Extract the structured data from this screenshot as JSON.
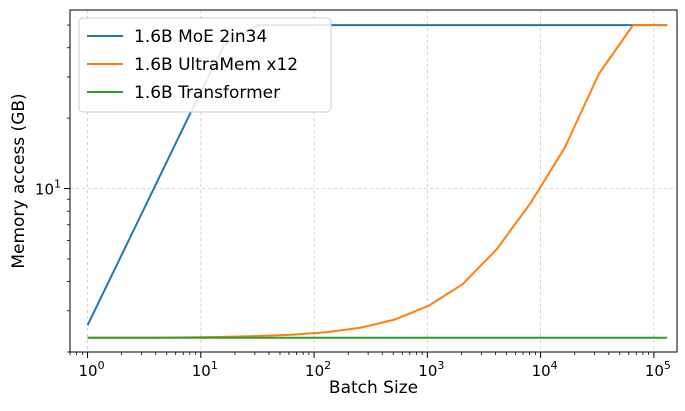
{
  "chart_data": {
    "type": "line",
    "xscale": "log",
    "yscale": "log",
    "xlabel": "Batch Size",
    "ylabel": "Memory access (GB)",
    "xlim": [
      0.7,
      160000
    ],
    "ylim": [
      2.0,
      58
    ],
    "grid": true,
    "legend_position": "top-left",
    "x_ticks": [
      {
        "value": 1,
        "label": "10^0"
      },
      {
        "value": 10,
        "label": "10^1"
      },
      {
        "value": 100,
        "label": "10^2"
      },
      {
        "value": 1000,
        "label": "10^3"
      },
      {
        "value": 10000,
        "label": "10^4"
      },
      {
        "value": 100000,
        "label": "10^5"
      }
    ],
    "y_ticks": [
      {
        "value": 10,
        "label": "10^1"
      }
    ],
    "series": [
      {
        "name": "1.6B MoE 2in34",
        "color": "#1f77b4",
        "x": [
          1,
          2,
          4,
          8,
          16,
          32,
          64,
          128,
          256,
          512,
          1024,
          2048,
          4096,
          8192,
          16384,
          32768,
          65536,
          131072
        ],
        "y": [
          2.6,
          5.2,
          10.4,
          20.8,
          41,
          50,
          50,
          50,
          50,
          50,
          50,
          50,
          50,
          50,
          50,
          50,
          50,
          50
        ]
      },
      {
        "name": "1.6B UltraMem x12",
        "color": "#ff7f0e",
        "x": [
          1,
          2,
          4,
          8,
          16,
          32,
          64,
          128,
          256,
          512,
          1024,
          2048,
          4096,
          8192,
          16384,
          32768,
          65536,
          131072
        ],
        "y": [
          2.3,
          2.3,
          2.3,
          2.31,
          2.32,
          2.34,
          2.37,
          2.43,
          2.54,
          2.75,
          3.15,
          3.9,
          5.5,
          8.7,
          15,
          31,
          50,
          50
        ]
      },
      {
        "name": "1.6B Transformer",
        "color": "#2ca02c",
        "x": [
          1,
          131072
        ],
        "y": [
          2.3,
          2.3
        ]
      }
    ]
  }
}
